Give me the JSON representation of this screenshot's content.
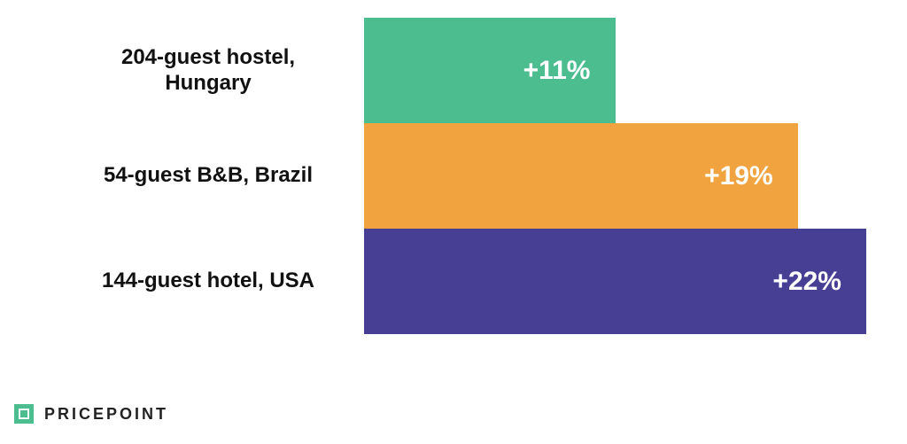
{
  "chart_data": {
    "type": "bar",
    "orientation": "horizontal",
    "categories": [
      "204-guest hostel, Hungary",
      "54-guest B&B, Brazil",
      "144-guest hotel, USA"
    ],
    "values": [
      11,
      19,
      22
    ],
    "value_labels": [
      "+11%",
      "+19%",
      "+22%"
    ],
    "colors": [
      "#4bbd8e",
      "#f1a33f",
      "#463f94"
    ]
  },
  "brand": "PRICEPOINT"
}
